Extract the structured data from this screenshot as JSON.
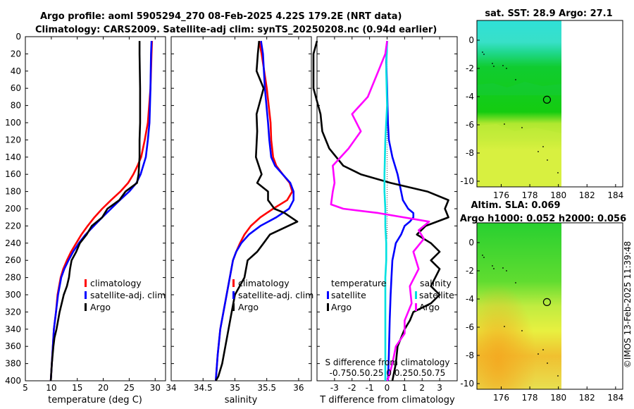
{
  "titles": {
    "line1": "Argo profile: aoml 5905294_270 08-Feb-2025 4.22S 179.2E (NRT data)",
    "line2": "Climatology: CARS2009. Satellite-adj clim: synTS_20250208.nc (0.94d earlier)",
    "map1": "sat. SST: 28.9 Argo: 27.1",
    "map2_line1": "Altim. SLA: 0.069",
    "map2_line2": "Argo h1000: 0.052 h2000: 0.056",
    "credit": "©IMOS 13-Feb-2025 11:39:48"
  },
  "colors": {
    "climatology": "#ff0000",
    "satellite": "#0000ff",
    "argo": "#000000",
    "sal_argo": "#ff00ff",
    "sal_sat": "#00e0e0"
  },
  "chart_data": [
    {
      "type": "line",
      "xlabel": "temperature (deg C)",
      "ylabel": "",
      "xlim": [
        5,
        32
      ],
      "ylim": [
        400,
        0
      ],
      "xticks": [
        5,
        10,
        15,
        20,
        25,
        30
      ],
      "yticks": [
        0,
        20,
        40,
        60,
        80,
        100,
        120,
        140,
        160,
        180,
        200,
        220,
        240,
        260,
        280,
        300,
        320,
        340,
        360,
        380,
        400
      ],
      "legend": [
        "climatology",
        "satellite-adj. clim",
        "Argo"
      ],
      "series": [
        {
          "name": "climatology",
          "color": "#ff0000",
          "x": [
            29.4,
            29.3,
            29.1,
            28.6,
            28.0,
            27.3,
            26.6,
            25.8,
            24.8,
            23.3,
            21.5,
            19.8,
            18.3,
            17.0,
            15.8,
            14.8,
            13.8,
            13.0,
            12.3,
            11.8,
            11.2,
            10.9,
            10.5,
            10.2,
            9.9
          ],
          "y": [
            5,
            20,
            60,
            100,
            120,
            140,
            150,
            160,
            170,
            180,
            190,
            200,
            210,
            220,
            230,
            240,
            250,
            260,
            270,
            280,
            300,
            320,
            340,
            370,
            400
          ]
        },
        {
          "name": "satellite-adj. clim",
          "color": "#0000ff",
          "x": [
            29.3,
            29.2,
            29.1,
            28.9,
            28.6,
            28.2,
            27.7,
            27.2,
            26.4,
            25.0,
            23.2,
            21.5,
            19.8,
            18.2,
            16.6,
            15.3,
            14.2,
            13.3,
            12.5,
            11.9,
            11.3,
            10.9,
            10.5,
            10.2,
            9.9
          ],
          "y": [
            5,
            20,
            60,
            100,
            120,
            140,
            150,
            160,
            170,
            180,
            190,
            200,
            210,
            220,
            230,
            240,
            250,
            260,
            270,
            280,
            300,
            320,
            340,
            370,
            400
          ]
        },
        {
          "name": "Argo",
          "color": "#000000",
          "x": [
            27.0,
            27.0,
            27.1,
            27.1,
            27.0,
            27.0,
            26.9,
            26.8,
            26.5,
            24.3,
            23.1,
            20.8,
            19.8,
            17.8,
            16.8,
            15.5,
            14.8,
            13.9,
            13.6,
            13.4,
            13.0,
            12.4,
            12.0,
            11.6,
            11.3,
            11.0,
            10.6,
            10.4,
            10.1,
            9.9
          ],
          "y": [
            5,
            20,
            60,
            100,
            120,
            140,
            150,
            160,
            170,
            180,
            190,
            200,
            210,
            220,
            230,
            240,
            250,
            260,
            270,
            280,
            290,
            300,
            310,
            320,
            330,
            340,
            350,
            360,
            380,
            400
          ]
        }
      ]
    },
    {
      "type": "line",
      "xlabel": "salinity",
      "ylabel": "",
      "xlim": [
        34,
        36.2
      ],
      "ylim": [
        400,
        0
      ],
      "xticks": [
        34,
        34.5,
        35,
        35.5,
        36
      ],
      "xtick_labels": [
        "34",
        "34.5",
        "35",
        "35.5",
        "36"
      ],
      "legend": [
        "climatology",
        "satellite-adj. clim",
        "Argo"
      ],
      "series": [
        {
          "name": "climatology",
          "color": "#ff0000",
          "x": [
            35.38,
            35.42,
            35.5,
            35.56,
            35.57,
            35.6,
            35.65,
            35.75,
            35.86,
            35.9,
            35.82,
            35.6,
            35.4,
            35.25,
            35.15,
            35.08,
            35.02,
            34.97,
            34.92,
            34.87,
            34.82,
            34.77,
            34.73,
            34.7
          ],
          "y": [
            5,
            20,
            60,
            100,
            120,
            140,
            150,
            160,
            170,
            180,
            190,
            200,
            210,
            220,
            230,
            240,
            250,
            260,
            280,
            300,
            320,
            340,
            370,
            400
          ]
        },
        {
          "name": "satellite-adj. clim",
          "color": "#0000ff",
          "x": [
            35.41,
            35.44,
            35.47,
            35.52,
            35.54,
            35.57,
            35.63,
            35.75,
            35.87,
            35.92,
            35.92,
            35.85,
            35.65,
            35.4,
            35.22,
            35.1,
            35.02,
            34.97,
            34.92,
            34.87,
            34.82,
            34.77,
            34.73,
            34.7
          ],
          "y": [
            5,
            20,
            60,
            100,
            120,
            140,
            150,
            160,
            170,
            180,
            190,
            200,
            210,
            220,
            230,
            240,
            250,
            260,
            280,
            300,
            320,
            340,
            370,
            400
          ]
        },
        {
          "name": "Argo",
          "color": "#000000",
          "x": [
            35.38,
            35.36,
            35.34,
            35.45,
            35.34,
            35.35,
            35.33,
            35.42,
            35.35,
            35.52,
            35.52,
            35.62,
            35.78,
            35.98,
            35.55,
            35.45,
            35.35,
            35.2,
            35.15,
            35.0,
            34.95,
            34.9,
            34.85,
            34.8,
            34.74,
            34.7
          ],
          "y": [
            5,
            20,
            40,
            60,
            90,
            110,
            140,
            160,
            170,
            180,
            190,
            200,
            205,
            215,
            230,
            240,
            250,
            260,
            280,
            300,
            320,
            340,
            360,
            380,
            395,
            400
          ]
        }
      ]
    },
    {
      "type": "line",
      "xlabel": "T difference from climatology",
      "top_label_line1": "S difference from climatology",
      "top_label_line2": "-0.750.50.25 0 0.250.50.75",
      "ylabel": "",
      "xlim": [
        -4,
        4
      ],
      "ylim": [
        400,
        0
      ],
      "xticks": [
        -3,
        -2,
        -1,
        0,
        1,
        2,
        3
      ],
      "legend_temperature_title": "temperature",
      "legend_salinity_title": "salinity",
      "legend_temperature": [
        "satellite",
        "Argo"
      ],
      "legend_salinity": [
        "satellite",
        "Argo"
      ],
      "series": [
        {
          "name": "temperature satellite",
          "color": "#0000ff",
          "x": [
            0.0,
            -0.05,
            0.0,
            0.05,
            0.1,
            0.3,
            0.6,
            0.8,
            0.9,
            1.2,
            1.5,
            1.5,
            1.3,
            1.0,
            0.8,
            0.5,
            0.4,
            0.3,
            0.25,
            0.2,
            0.15,
            0.1,
            0.05
          ],
          "y": [
            5,
            30,
            60,
            100,
            120,
            140,
            160,
            180,
            190,
            200,
            205,
            210,
            215,
            220,
            230,
            240,
            250,
            260,
            280,
            300,
            330,
            370,
            400
          ]
        },
        {
          "name": "temperature Argo",
          "color": "#000000",
          "x": [
            -4.0,
            -4.2,
            -4.2,
            -4.2,
            -3.8,
            -3.7,
            -3.3,
            -2.5,
            -1.5,
            0.2,
            2.3,
            3.5,
            3.3,
            3.5,
            2.2,
            1.7,
            2.5,
            3.0,
            2.5,
            3.0,
            2.5,
            3.0,
            2.5,
            1.5,
            1.3,
            1.0,
            0.8,
            0.6,
            0.5,
            0.3
          ],
          "y": [
            5,
            20,
            40,
            60,
            90,
            110,
            130,
            150,
            160,
            170,
            180,
            190,
            200,
            210,
            220,
            230,
            240,
            250,
            260,
            270,
            290,
            300,
            310,
            320,
            330,
            340,
            350,
            360,
            380,
            400
          ]
        },
        {
          "name": "salinity satellite",
          "color": "#00e0e0",
          "x": [
            0.0,
            -0.05,
            0.0,
            -0.1,
            -0.15,
            -0.15,
            -0.1,
            -0.1,
            -0.05,
            -0.05,
            -0.1,
            -0.1,
            -0.1,
            -0.1,
            -0.1
          ],
          "y": [
            5,
            40,
            80,
            120,
            160,
            180,
            200,
            220,
            240,
            260,
            280,
            300,
            330,
            360,
            400
          ]
        },
        {
          "name": "salinity Argo",
          "color": "#ff00ff",
          "x": [
            0.0,
            -0.1,
            -0.5,
            -1.1,
            -2.0,
            -1.5,
            -2.2,
            -3.1,
            -3.0,
            -3.1,
            -3.2,
            -2.5,
            -0.5,
            2.4,
            1.8,
            2.1,
            1.5,
            1.8,
            1.3,
            1.4,
            1.0,
            1.0,
            0.5,
            0.3,
            0.1,
            0.0
          ],
          "y": [
            5,
            20,
            40,
            70,
            90,
            110,
            130,
            150,
            170,
            180,
            195,
            200,
            205,
            215,
            225,
            235,
            250,
            270,
            290,
            310,
            330,
            345,
            360,
            380,
            395,
            400
          ]
        }
      ]
    },
    {
      "type": "heatmap",
      "title": "sat. SST: 28.9 Argo: 27.1",
      "xlim": [
        174.3,
        184.5
      ],
      "ylim": [
        -10.4,
        1.4
      ],
      "xticks": [
        176,
        178,
        180,
        182,
        184
      ],
      "yticks": [
        0,
        -2,
        -4,
        -6,
        -8,
        -10
      ],
      "data_lon_max": 180.0,
      "argo_position": {
        "lon": 179.2,
        "lat": -4.22
      }
    },
    {
      "type": "heatmap",
      "title": "Altim. SLA: 0.069",
      "subtitle": "Argo h1000: 0.052 h2000: 0.056",
      "xlim": [
        174.3,
        184.5
      ],
      "ylim": [
        -10.4,
        1.4
      ],
      "xticks": [
        176,
        178,
        180,
        182,
        184
      ],
      "yticks": [
        0,
        -2,
        -4,
        -6,
        -8,
        -10
      ],
      "data_lon_max": 180.0,
      "argo_position": {
        "lon": 179.2,
        "lat": -4.22
      }
    }
  ]
}
